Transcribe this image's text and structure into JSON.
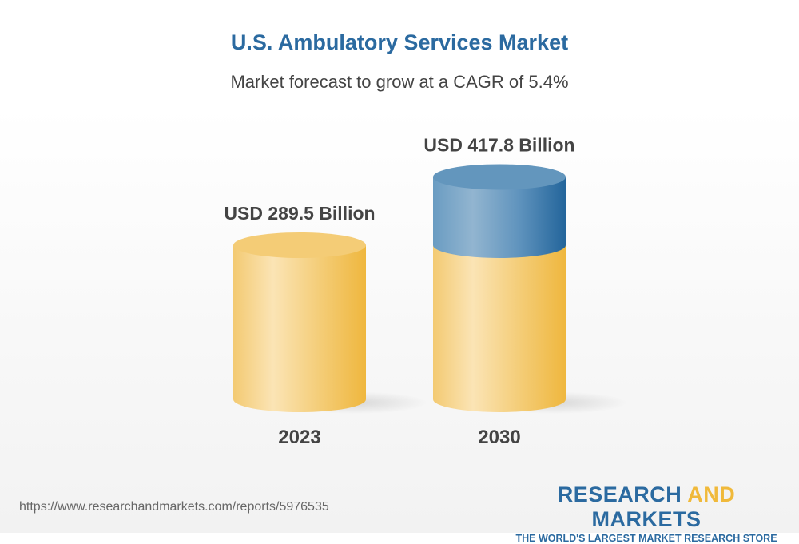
{
  "title": "U.S. Ambulatory Services Market",
  "subtitle": "Market forecast to grow at a CAGR of 5.4%",
  "footer": {
    "url": "https://www.researchandmarkets.com/reports/5976535",
    "logo_part1": "RESEARCH ",
    "logo_part2": "AND",
    "logo_part3": " MARKETS",
    "tagline": "THE WORLD'S LARGEST MARKET RESEARCH STORE"
  },
  "colors": {
    "base": "#f0b93a",
    "growth": "#2b6aa0",
    "title": "#2b6aa0"
  },
  "chart_data": {
    "type": "bar",
    "style": "3d-cylinder",
    "categories": [
      "2023",
      "2030"
    ],
    "values": [
      289.5,
      417.8
    ],
    "value_labels": [
      "USD 289.5 Billion",
      "USD 417.8 Billion"
    ],
    "unit": "USD Billion",
    "grid": false
  }
}
